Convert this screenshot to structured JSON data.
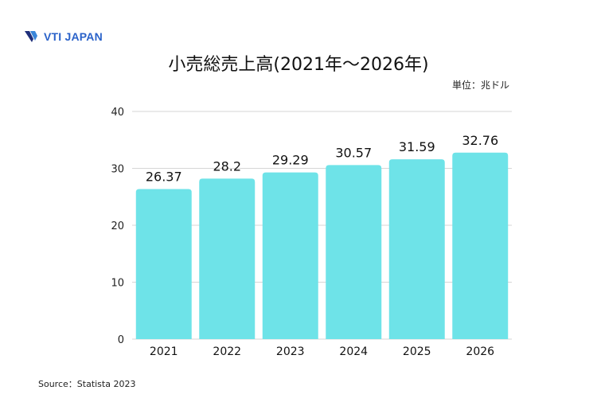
{
  "brand": {
    "name": "VTI JAPAN",
    "colors": {
      "v_dark": "#1f2f7a",
      "v_light": "#3a86d9",
      "text": "#2a62c9"
    }
  },
  "unit_label": "単位：兆ドル",
  "source": "Source：Statista 2023",
  "chart_data": {
    "type": "bar",
    "title": "小売総売上高(2021年〜2026年)",
    "categories": [
      "2021",
      "2022",
      "2023",
      "2024",
      "2025",
      "2026"
    ],
    "values": [
      26.37,
      28.2,
      29.29,
      30.57,
      31.59,
      32.76
    ],
    "data_labels": [
      "26.37",
      "28.2",
      "29.29",
      "30.57",
      "31.59",
      "32.76"
    ],
    "ylim": [
      0,
      40
    ],
    "yticks": [
      0,
      10,
      20,
      30,
      40
    ],
    "grid": true,
    "bar_color": "#6ee3e8",
    "grid_color": "#d6d6d6"
  }
}
